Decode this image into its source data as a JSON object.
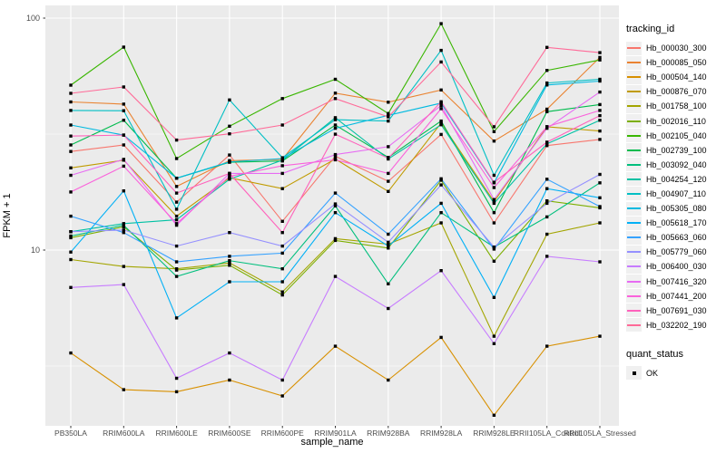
{
  "chart_data": {
    "type": "line",
    "title": "",
    "xlabel": "sample_name",
    "ylabel": "FPKM + 1",
    "y_scale": "log10",
    "y_ticks": [
      100,
      10
    ],
    "y_minor_breaks": [
      31.62,
      3.162
    ],
    "ylim": [
      1.75,
      113
    ],
    "grid": "white gridlines on gray panel",
    "legend_position": "right",
    "panel_bg": "#EBEBEB",
    "point_shape": "filled-square-black",
    "categories": [
      "PB350LA",
      "RRIM600LA",
      "RRIM600LE",
      "RRIM600SE",
      "RRIM600PE",
      "RRIM901LA",
      "RRIM928BA",
      "RRIM928LA",
      "RRIM928LE",
      "RRII105LA_Control",
      "RRII105LA_Stressed"
    ],
    "series": [
      {
        "name": "Hb_000030_300",
        "color": "#F8766D",
        "values": [
          26.6,
          28.4,
          16.1,
          25.7,
          13.3,
          25.4,
          19.8,
          31.5,
          13.1,
          28.2,
          30.0
        ]
      },
      {
        "name": "Hb_000085_050",
        "color": "#EA8331",
        "values": [
          43.5,
          42.6,
          18.8,
          24.3,
          24.6,
          47.5,
          43.4,
          49.0,
          29.5,
          40.5,
          67.7
        ]
      },
      {
        "name": "Hb_000504_140",
        "color": "#D89000",
        "values": [
          3.6,
          2.5,
          2.45,
          2.75,
          2.35,
          3.85,
          2.75,
          4.2,
          1.94,
          3.85,
          4.25
        ]
      },
      {
        "name": "Hb_000876_070",
        "color": "#C09B00",
        "values": [
          22.6,
          24.4,
          14.0,
          20.5,
          18.4,
          24.7,
          17.9,
          35.3,
          16.2,
          34.0,
          32.6
        ]
      },
      {
        "name": "Hb_001758_100",
        "color": "#A3A500",
        "values": [
          9.1,
          8.5,
          8.3,
          8.8,
          6.6,
          11.2,
          10.6,
          13.1,
          4.25,
          11.7,
          13.1
        ]
      },
      {
        "name": "Hb_002016_110",
        "color": "#7CAE00",
        "values": [
          11.3,
          12.6,
          8.2,
          8.6,
          6.4,
          11.0,
          10.2,
          20.0,
          8.95,
          16.3,
          15.2
        ]
      },
      {
        "name": "Hb_002105_040",
        "color": "#39B600",
        "values": [
          51.4,
          75.0,
          24.8,
          34.2,
          45.0,
          54.5,
          38.8,
          94.7,
          32.4,
          59.5,
          66.0
        ]
      },
      {
        "name": "Hb_002739_100",
        "color": "#00BB4E",
        "values": [
          28.4,
          36.3,
          20.4,
          23.9,
          24.2,
          34.6,
          25.1,
          36.0,
          14.5,
          39.5,
          42.4
        ]
      },
      {
        "name": "Hb_003092_040",
        "color": "#00BF7D",
        "values": [
          11.5,
          12.8,
          7.7,
          9.0,
          8.3,
          15.5,
          7.15,
          14.5,
          10.3,
          13.9,
          19.5
        ]
      },
      {
        "name": "Hb_004254_120",
        "color": "#00C1A3",
        "values": [
          12.0,
          13.0,
          13.5,
          20.2,
          24.4,
          37.2,
          24.7,
          34.7,
          15.9,
          28.7,
          36.3
        ]
      },
      {
        "name": "Hb_004907_110",
        "color": "#00BFC4",
        "values": [
          40.0,
          39.9,
          15.0,
          44.4,
          25.0,
          36.5,
          36.0,
          72.6,
          21.0,
          52.5,
          54.5
        ]
      },
      {
        "name": "Hb_005305_080",
        "color": "#00BAE0",
        "values": [
          34.6,
          31.3,
          20.4,
          24.0,
          24.8,
          33.5,
          38.1,
          43.0,
          19.5,
          51.5,
          53.5
        ]
      },
      {
        "name": "Hb_005618_170",
        "color": "#00B0F6",
        "values": [
          9.8,
          18.0,
          5.1,
          7.3,
          7.3,
          14.5,
          10.4,
          15.9,
          6.25,
          18.4,
          16.8
        ]
      },
      {
        "name": "Hb_005663_060",
        "color": "#35A2FF",
        "values": [
          14.0,
          11.9,
          8.9,
          9.4,
          9.7,
          17.6,
          11.7,
          20.3,
          10.1,
          20.2,
          15.4
        ]
      },
      {
        "name": "Hb_005779_060",
        "color": "#9590FF",
        "values": [
          12.0,
          12.2,
          10.4,
          11.9,
          10.4,
          15.8,
          10.8,
          19.1,
          10.3,
          15.9,
          21.2
        ]
      },
      {
        "name": "Hb_006400_030",
        "color": "#C77CFF",
        "values": [
          6.9,
          7.1,
          2.8,
          3.6,
          2.75,
          7.7,
          5.6,
          8.15,
          3.95,
          9.4,
          8.9
        ]
      },
      {
        "name": "Hb_007416_320",
        "color": "#E76BF3",
        "values": [
          21.0,
          24.6,
          12.8,
          21.4,
          21.4,
          25.8,
          27.9,
          42.0,
          16.5,
          33.5,
          48.0
        ]
      },
      {
        "name": "Hb_007441_200",
        "color": "#FA62DB",
        "values": [
          17.8,
          23.0,
          13.0,
          20.8,
          23.1,
          24.5,
          21.4,
          40.7,
          18.6,
          34.0,
          40.0
        ]
      },
      {
        "name": "Hb_007691_030",
        "color": "#FF62BC",
        "values": [
          31.0,
          31.3,
          17.6,
          21.4,
          11.9,
          31.6,
          24.9,
          43.6,
          19.6,
          29.2,
          38.0
        ]
      },
      {
        "name": "Hb_032202_190",
        "color": "#FF6A98",
        "values": [
          47.4,
          50.5,
          29.8,
          31.7,
          34.6,
          45.0,
          37.5,
          64.7,
          34.0,
          74.8,
          71.0
        ]
      }
    ]
  },
  "legend": {
    "tracking_title": "tracking_id",
    "quant_title": "quant_status",
    "quant_value": "OK",
    "key_bg": "#F0F0F0",
    "point_color": "#000000"
  },
  "axes": {
    "y_tick_labels": [
      "100",
      "10"
    ],
    "x_tick_label_color": "#4D4D4D",
    "y_tick_label_color": "#4D4D4D"
  },
  "layout_colors": {
    "panel_bg": "#EBEBEB",
    "grid_major": "#FFFFFF",
    "grid_minor": "#FFFFFF",
    "background": "#FFFFFF"
  }
}
